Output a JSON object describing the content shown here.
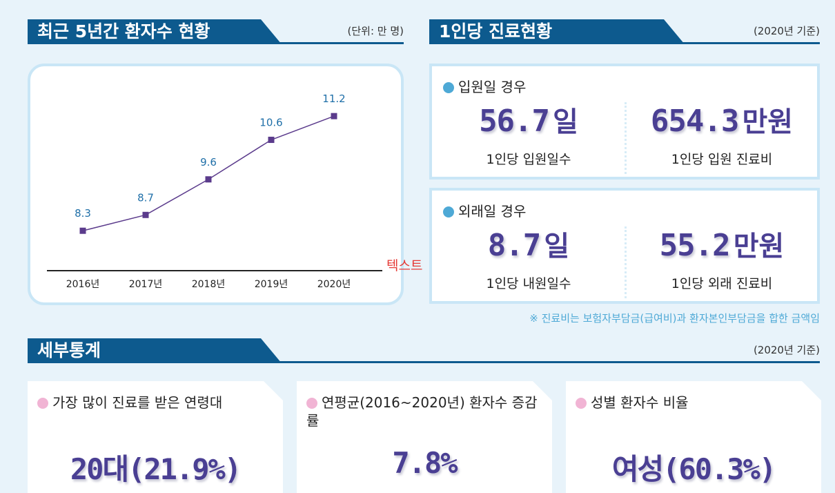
{
  "sections": {
    "trend": {
      "title": "최근 5년간 환자수 현황",
      "note": "(단위: 만 명)"
    },
    "per_person": {
      "title": "1인당 진료현황",
      "note": "(2020년 기준)"
    },
    "details": {
      "title": "세부통계",
      "note": "(2020년 기준)"
    }
  },
  "side_label": "텍스트",
  "chart_data": {
    "type": "line",
    "title": "",
    "xlabel": "",
    "ylabel": "",
    "categories": [
      "2016년",
      "2017년",
      "2018년",
      "2019년",
      "2020년"
    ],
    "values": [
      8.3,
      8.7,
      9.6,
      10.6,
      11.2
    ],
    "data_labels": [
      "8.3",
      "8.7",
      "9.6",
      "10.6",
      "11.2"
    ],
    "ylim": [
      7.5,
      11.5
    ],
    "grid": false,
    "line_color": "#5b3b8c",
    "label_color": "#1f6fa8"
  },
  "inpatient": {
    "title": "입원일 경우",
    "days": {
      "value": "56.7",
      "unit": "일",
      "caption": "1인당 입원일수"
    },
    "cost": {
      "value": "654.3",
      "unit": "만원",
      "caption": "1인당 입원 진료비"
    }
  },
  "outpatient": {
    "title": "외래일 경우",
    "days": {
      "value": "8.7",
      "unit": "일",
      "caption": "1인당 내원일수"
    },
    "cost": {
      "value": "55.2",
      "unit": "만원",
      "caption": "1인당 외래 진료비"
    }
  },
  "footnote": "※ 진료비는 보험자부담금(급여비)과 환자본인부담금을 합한 금액임",
  "detail_cards": [
    {
      "title": "가장 많이 진료를 받은 연령대",
      "value": "20대(21.9%)"
    },
    {
      "title": "연평균(2016~2020년) 환자수 증감률",
      "value": "7.8%"
    },
    {
      "title": "성별 환자수 비율",
      "value": "여성(60.3%)"
    }
  ],
  "colors": {
    "accent": "#0d5a8e",
    "digits": "#4a3f93",
    "dot_blue": "#4ea9d6",
    "dot_pink": "#f1b4d4",
    "background": "#e8f3fa"
  }
}
